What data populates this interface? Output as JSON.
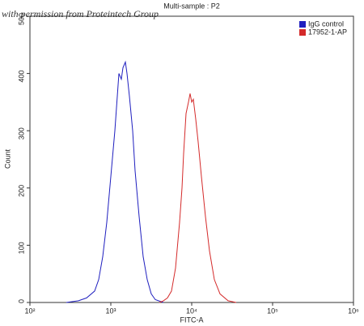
{
  "chart_data": {
    "type": "line",
    "title": "Multi-sample : P2",
    "annotation": "with permission from Proteintech Group",
    "x_label": "FITC-A",
    "y_label": "Count",
    "x_scale": "log",
    "xlim": [
      100,
      1000000
    ],
    "xticks": [
      {
        "value": 100,
        "label": "10²"
      },
      {
        "value": 1000,
        "label": "10³"
      },
      {
        "value": 10000,
        "label": "10⁴"
      },
      {
        "value": 100000,
        "label": "10⁵"
      },
      {
        "value": 1000000,
        "label": "10⁶"
      }
    ],
    "ylim": [
      0,
      500
    ],
    "yticks": [
      0,
      100,
      200,
      300,
      400,
      500
    ],
    "legend": "upper right",
    "series": [
      {
        "name": "IgG control",
        "color": "#1f1fbf",
        "x": [
          282,
          398,
          501,
          631,
          708,
          794,
          891,
          1000,
          1122,
          1202,
          1259,
          1349,
          1413,
          1514,
          1585,
          1698,
          1862,
          1995,
          2239,
          2512,
          2818,
          3162,
          3548,
          4467
        ],
        "values": [
          0,
          3,
          8,
          20,
          40,
          80,
          140,
          220,
          300,
          360,
          400,
          390,
          410,
          420,
          400,
          360,
          300,
          230,
          150,
          80,
          40,
          15,
          5,
          0
        ]
      },
      {
        "name": "17952-1-AP",
        "color": "#d42a2a",
        "x": [
          3981,
          4467,
          5012,
          5623,
          6310,
          7079,
          7586,
          7943,
          8511,
          9120,
          9550,
          10000,
          10471,
          11220,
          12023,
          13183,
          14791,
          16596,
          19055,
          22387,
          28184,
          35481
        ],
        "values": [
          0,
          3,
          8,
          20,
          60,
          140,
          200,
          260,
          330,
          350,
          365,
          350,
          355,
          320,
          280,
          220,
          150,
          90,
          40,
          15,
          3,
          0
        ]
      }
    ]
  }
}
